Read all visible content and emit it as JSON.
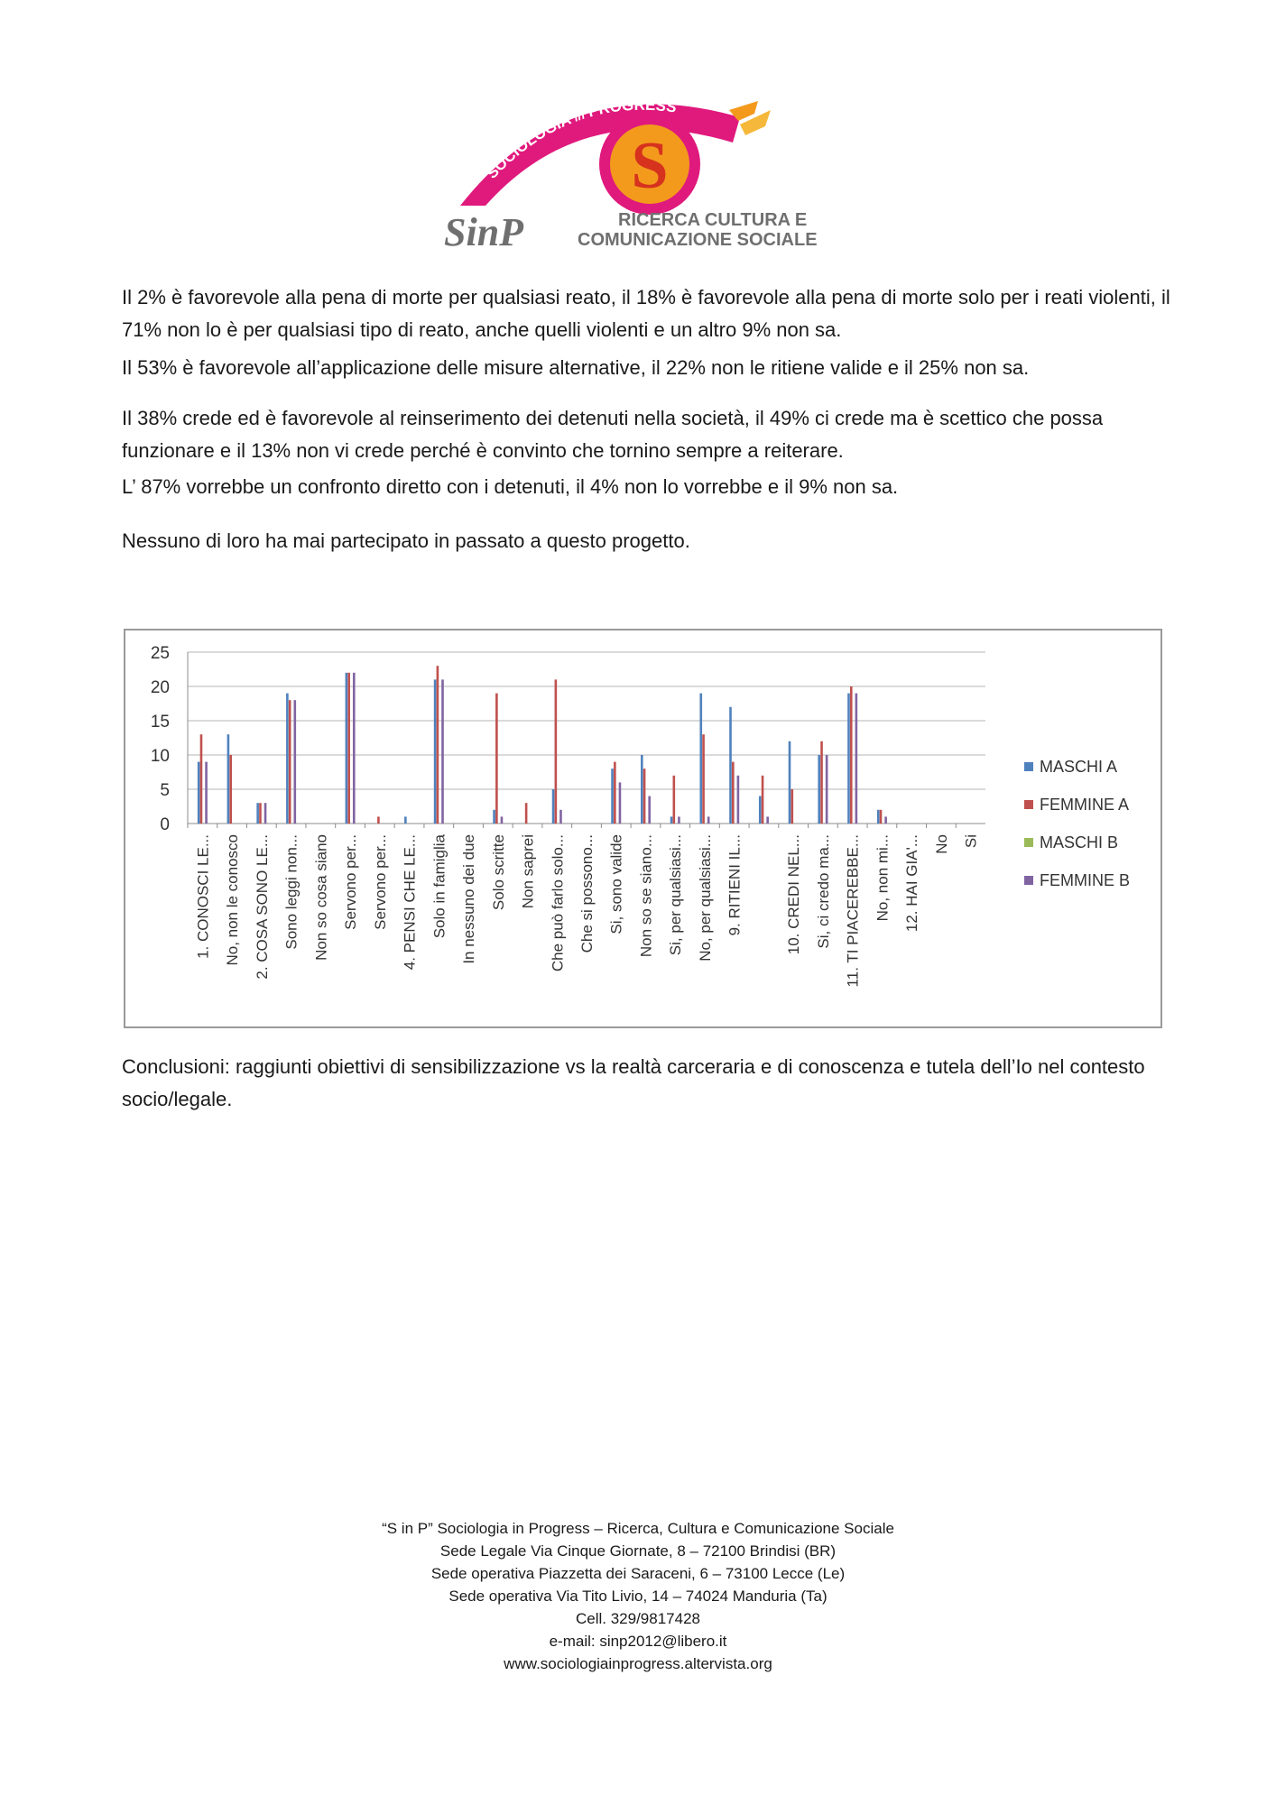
{
  "logo": {
    "arc_text": "SOCIOLOGIA in PROGRESS",
    "arc_main": "SOCIOLOGIA",
    "arc_small": "in",
    "arc_end": "PROGRESS",
    "monogram": "SinP",
    "tagline_line1": "RICERCA CULTURA E",
    "tagline_line2": "COMUNICAZIONE SOCIALE",
    "colors": {
      "pink": "#e0197d",
      "orange": "#f39a1d",
      "red": "#d6321e",
      "gray": "#6f6f6f"
    }
  },
  "text": {
    "p1": "Il 2% è favorevole alla pena di morte per qualsiasi reato, il 18% è favorevole alla pena di morte solo per i reati violenti, il 71% non lo è per qualsiasi tipo di reato, anche quelli violenti e un altro 9% non sa.",
    "p2": "Il 53% è favorevole all’applicazione delle misure alternative, il 22% non le ritiene valide e il 25% non sa.",
    "p3": "Il 38% crede ed è favorevole al reinserimento dei detenuti nella società, il 49% ci crede ma è scettico che possa funzionare e il 13% non vi crede perché è convinto che tornino sempre a reiterare.",
    "p4": "L’ 87% vorrebbe un confronto diretto con i detenuti, il 4% non lo vorrebbe e il 9% non sa.",
    "p5": "Nessuno di loro ha mai partecipato in passato a questo progetto.",
    "p6": "Conclusioni: raggiunti obiettivi di sensibilizzazione vs la realtà carceraria e di conoscenza e tutela dell’Io nel contesto socio/legale."
  },
  "chart_data": {
    "type": "bar",
    "ylim": [
      0,
      25
    ],
    "yticks": [
      0,
      5,
      10,
      15,
      20,
      25
    ],
    "grid": true,
    "legend_position": "right",
    "categories": [
      "1. CONOSCI LE...",
      "No, non le conosco",
      "2. COSA SONO LE...",
      "Sono leggi non...",
      "Non so cosa siano",
      "Servono per...",
      "Servono per...",
      "4. PENSI CHE LE...",
      "Solo in famiglia",
      "In nessuno dei due",
      "Solo scritte",
      "Non saprei",
      "Che può farlo solo...",
      "Che si possono...",
      "Si, sono valide",
      "Non so se siano...",
      "Si, per qualsiasi...",
      "No, per qualsiasi...",
      "9. RITIENI IL...",
      "",
      "10. CREDI NEL...",
      "Si, ci credo ma...",
      "11. TI PIACEREBBE...",
      "No, non mi...",
      "12. HAI GIA'...",
      "No",
      "Si"
    ],
    "series": [
      {
        "name": "MASCHI A",
        "color": "#4f81bd",
        "values": [
          9,
          13,
          3,
          19,
          0,
          22,
          0,
          1,
          21,
          0,
          2,
          0,
          5,
          0,
          8,
          10,
          1,
          19,
          17,
          4,
          12,
          10,
          19,
          2,
          0,
          0,
          0
        ]
      },
      {
        "name": "FEMMINE A",
        "color": "#c0504d",
        "values": [
          13,
          10,
          3,
          18,
          0,
          22,
          1,
          0,
          23,
          0,
          19,
          3,
          21,
          0,
          9,
          8,
          7,
          13,
          9,
          7,
          5,
          12,
          20,
          2,
          0,
          0,
          0
        ]
      },
      {
        "name": "MASCHI B",
        "color": "#9bbb59",
        "values": [
          0,
          0,
          0,
          0,
          0,
          0,
          0,
          0,
          0,
          0,
          0,
          0,
          0,
          0,
          0,
          0,
          0,
          0,
          0,
          0,
          0,
          0,
          0,
          0,
          0,
          0,
          0
        ]
      },
      {
        "name": "FEMMINE B",
        "color": "#8064a2",
        "values": [
          9,
          0,
          3,
          18,
          0,
          22,
          0,
          0,
          21,
          0,
          1,
          0,
          2,
          0,
          6,
          4,
          1,
          1,
          7,
          1,
          0,
          10,
          19,
          1,
          0,
          0,
          0
        ]
      }
    ]
  },
  "footer": {
    "line1": "“S in P” Sociologia in Progress – Ricerca, Cultura e Comunicazione Sociale",
    "line2": "Sede Legale Via Cinque Giornate, 8 – 72100 Brindisi (BR)",
    "line3": "Sede operativa Piazzetta dei Saraceni, 6 – 73100 Lecce (Le)",
    "line4": "Sede operativa Via Tito Livio, 14 – 74024 Manduria (Ta)",
    "line5": "Cell. 329/9817428",
    "line6": "e-mail: sinp2012@libero.it",
    "line7": "www.sociologiainprogress.altervista.org"
  }
}
